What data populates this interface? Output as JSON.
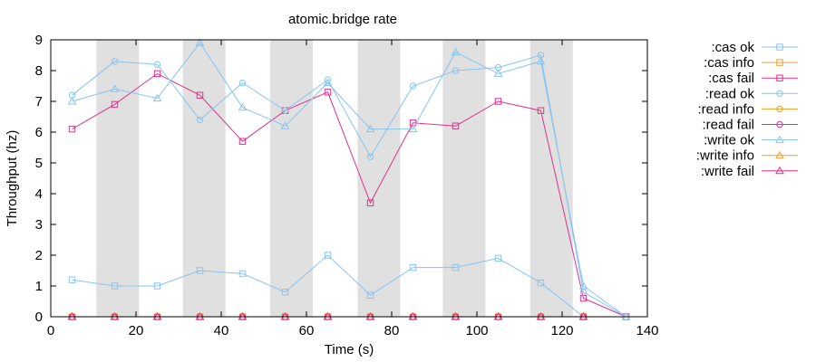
{
  "chart_data": {
    "type": "line",
    "title": "atomic.bridge rate",
    "xlabel": "Time (s)",
    "ylabel": "Throughput (hz)",
    "xlim": [
      0,
      140
    ],
    "ylim": [
      0,
      9
    ],
    "xticks": [
      0,
      20,
      40,
      60,
      80,
      100,
      120,
      140
    ],
    "yticks": [
      0,
      1,
      2,
      3,
      4,
      5,
      6,
      7,
      8,
      9
    ],
    "grid": false,
    "legend": "outside-right",
    "shaded_bands": [
      [
        10.7,
        20.7
      ],
      [
        31,
        41
      ],
      [
        51.5,
        61.5
      ],
      [
        72,
        82
      ],
      [
        92,
        102
      ],
      [
        112.5,
        122.5
      ]
    ],
    "shade_color": "#e0e0e0",
    "series": [
      {
        "name": ":cas ok",
        "color": "#87c4f0",
        "marker": "square",
        "x": [
          5,
          15,
          25,
          35,
          45,
          55,
          65,
          75,
          85,
          95,
          105,
          115,
          125,
          135
        ],
        "y": [
          1.2,
          1.0,
          1.0,
          1.5,
          1.4,
          0.8,
          2.0,
          0.7,
          1.6,
          1.6,
          1.9,
          1.1,
          0.0,
          0.0
        ]
      },
      {
        "name": ":cas info",
        "color": "#f0a020",
        "marker": "square",
        "x": [
          5,
          15,
          25,
          35,
          45,
          55,
          65,
          75,
          85,
          95,
          105,
          115,
          125
        ],
        "y": [
          0,
          0,
          0,
          0,
          0,
          0,
          0,
          0,
          0,
          0,
          0,
          0,
          0
        ]
      },
      {
        "name": ":cas fail",
        "color": "#e0308a",
        "marker": "square",
        "x": [
          5,
          15,
          25,
          35,
          45,
          55,
          65,
          75,
          85,
          95,
          105,
          115,
          125,
          135
        ],
        "y": [
          6.1,
          6.9,
          7.9,
          7.2,
          5.7,
          6.7,
          7.3,
          3.7,
          6.3,
          6.2,
          7.0,
          6.7,
          0.6,
          0.0
        ]
      },
      {
        "name": ":read ok",
        "color": "#87c4f0",
        "marker": "circle",
        "x": [
          5,
          15,
          25,
          35,
          45,
          55,
          65,
          75,
          85,
          95,
          105,
          115,
          125,
          135
        ],
        "y": [
          7.2,
          8.3,
          8.2,
          6.4,
          7.6,
          6.7,
          7.7,
          5.2,
          7.5,
          8.0,
          8.1,
          8.5,
          0.8,
          0.0
        ]
      },
      {
        "name": ":read info",
        "color": "#f0a020",
        "marker": "circle",
        "x": [
          5,
          15,
          25,
          35,
          45,
          55,
          65,
          75,
          85,
          95,
          105,
          115,
          125
        ],
        "y": [
          0,
          0,
          0,
          0,
          0,
          0,
          0,
          0,
          0,
          0,
          0,
          0,
          0
        ]
      },
      {
        "name": ":read fail",
        "color": "#e0308a",
        "marker": "circle",
        "x": [
          5,
          15,
          25,
          35,
          45,
          55,
          65,
          75,
          85,
          95,
          105,
          115,
          125
        ],
        "y": [
          0,
          0,
          0,
          0,
          0,
          0,
          0,
          0,
          0,
          0,
          0,
          0,
          0
        ]
      },
      {
        "name": ":write ok",
        "color": "#87c4f0",
        "marker": "triangle",
        "x": [
          5,
          15,
          25,
          35,
          45,
          55,
          65,
          75,
          85,
          95,
          105,
          115,
          125,
          135
        ],
        "y": [
          7.0,
          7.4,
          7.1,
          8.9,
          6.8,
          6.2,
          7.6,
          6.1,
          6.1,
          8.6,
          7.9,
          8.3,
          1.0,
          0.0
        ]
      },
      {
        "name": ":write info",
        "color": "#f0a020",
        "marker": "triangle",
        "x": [
          5,
          15,
          25,
          35,
          45,
          55,
          65,
          75,
          85,
          95,
          105,
          115,
          125
        ],
        "y": [
          0,
          0,
          0,
          0,
          0,
          0,
          0,
          0,
          0,
          0,
          0,
          0,
          0
        ]
      },
      {
        "name": ":write fail",
        "color": "#e0308a",
        "marker": "triangle",
        "x": [
          5,
          15,
          25,
          35,
          45,
          55,
          65,
          75,
          85,
          95,
          105,
          115,
          125
        ],
        "y": [
          0,
          0,
          0,
          0,
          0,
          0,
          0,
          0,
          0,
          0,
          0,
          0,
          0
        ]
      }
    ]
  }
}
